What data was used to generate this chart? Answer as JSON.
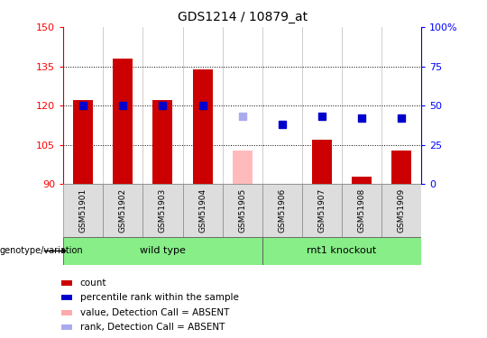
{
  "title": "GDS1214 / 10879_at",
  "samples": [
    "GSM51901",
    "GSM51902",
    "GSM51903",
    "GSM51904",
    "GSM51905",
    "GSM51906",
    "GSM51907",
    "GSM51908",
    "GSM51909"
  ],
  "bar_values": [
    122,
    138,
    122,
    134,
    103,
    90.3,
    107,
    93,
    103
  ],
  "bar_colors": [
    "#cc0000",
    "#cc0000",
    "#cc0000",
    "#cc0000",
    "#ffbbbb",
    "#cc0000",
    "#cc0000",
    "#cc0000",
    "#cc0000"
  ],
  "rank_values": [
    50,
    50,
    50,
    50,
    null,
    38,
    43,
    42,
    42
  ],
  "absent_rank_values": [
    null,
    null,
    null,
    null,
    43,
    null,
    null,
    null,
    null
  ],
  "ylim_left": [
    90,
    150
  ],
  "ylim_right": [
    0,
    100
  ],
  "yticks_left": [
    90,
    105,
    120,
    135,
    150
  ],
  "yticks_right": [
    0,
    25,
    50,
    75,
    100
  ],
  "ytick_right_labels": [
    "0",
    "25",
    "50",
    "75",
    "100%"
  ],
  "groups": [
    {
      "label": "wild type",
      "start": 0,
      "end": 4
    },
    {
      "label": "rnt1 knockout",
      "start": 5,
      "end": 8
    }
  ],
  "group_label": "genotype/variation",
  "legend_items": [
    {
      "label": "count",
      "color": "#cc0000"
    },
    {
      "label": "percentile rank within the sample",
      "color": "#0000cc"
    },
    {
      "label": "value, Detection Call = ABSENT",
      "color": "#ffaaaa"
    },
    {
      "label": "rank, Detection Call = ABSENT",
      "color": "#aaaaee"
    }
  ],
  "bar_width": 0.5,
  "rank_marker_size": 6,
  "dotted_grid_values": [
    105,
    120,
    135
  ],
  "background_color": "#ffffff",
  "xticklabel_bg": "#dddddd",
  "group_color": "#88ee88"
}
